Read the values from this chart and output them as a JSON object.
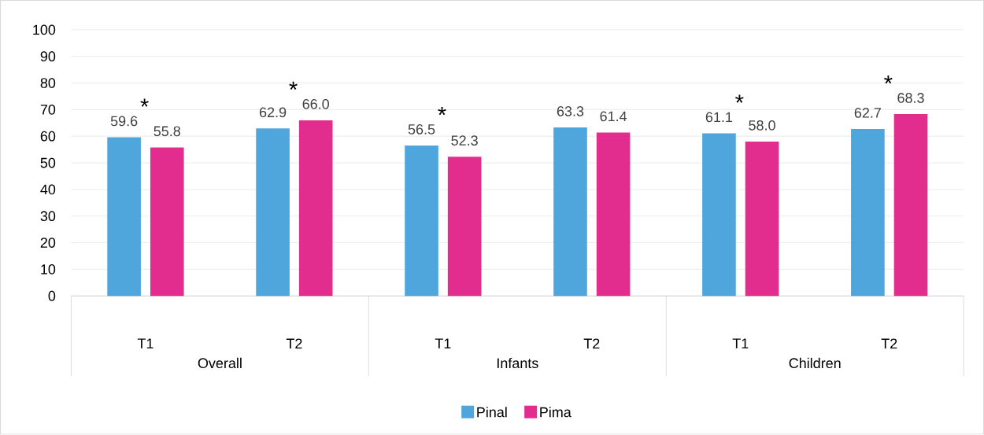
{
  "chart_data": {
    "type": "bar",
    "categories": [
      "T1",
      "T2",
      "T1",
      "T2",
      "T1",
      "T2"
    ],
    "series": [
      {
        "name": "Pinal",
        "color": "#4ea6dc",
        "values": [
          59.6,
          62.9,
          56.5,
          63.3,
          61.1,
          62.7
        ],
        "value_labels": [
          "59.6",
          "62.9",
          "56.5",
          "63.3",
          "61.1",
          "62.7"
        ]
      },
      {
        "name": "Pima",
        "color": "#e22d8f",
        "values": [
          55.8,
          66.0,
          52.3,
          61.4,
          58.0,
          68.3
        ],
        "value_labels": [
          "55.8",
          "66.0",
          "52.3",
          "61.4",
          "58.0",
          "68.3"
        ]
      }
    ],
    "annotations": [
      "Overall",
      "Infants",
      "Children",
      "*",
      "*",
      "*",
      "*",
      "*"
    ],
    "ylim": [
      0,
      100
    ],
    "yticks": [
      0,
      10,
      20,
      30,
      40,
      50,
      60,
      70,
      80,
      90,
      100
    ],
    "grid": "y",
    "legend": "bottom"
  }
}
